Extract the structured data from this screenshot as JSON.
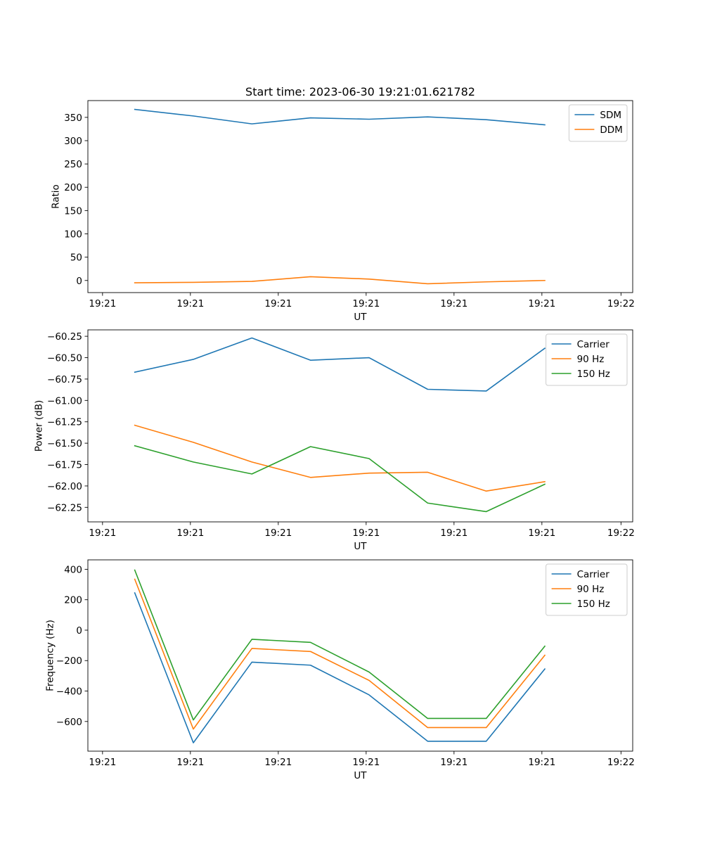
{
  "figure": {
    "title": "Start time: 2023-06-30 19:21:01.621782"
  },
  "colors": {
    "blue": "#1f77b4",
    "orange": "#ff7f0e",
    "green": "#2ca02c"
  },
  "chart_data": [
    {
      "type": "line",
      "title": "Start time: 2023-06-30 19:21:01.621782",
      "xlabel": "UT",
      "ylabel": "Ratio",
      "x": [
        1,
        2,
        3,
        4,
        5,
        6,
        7,
        8
      ],
      "xlim": [
        0.2,
        9.5
      ],
      "xticks": [
        0.45,
        1.95,
        3.45,
        4.95,
        6.45,
        7.95,
        9.3
      ],
      "xticklabels": [
        "19:21",
        "19:21",
        "19:21",
        "19:21",
        "19:21",
        "19:21",
        "19:22"
      ],
      "ylim": [
        -26,
        386
      ],
      "yticks": [
        0,
        50,
        100,
        150,
        200,
        250,
        300,
        350
      ],
      "yticklabels": [
        "0",
        "50",
        "100",
        "150",
        "200",
        "250",
        "300",
        "350"
      ],
      "legend_position": "top-right",
      "series": [
        {
          "name": "SDM",
          "color": "#1f77b4",
          "values": [
            367,
            353,
            336,
            349,
            346,
            351,
            345,
            334
          ]
        },
        {
          "name": "DDM",
          "color": "#ff7f0e",
          "values": [
            -5,
            -4,
            -2,
            8,
            3,
            -7,
            -3,
            0
          ]
        }
      ]
    },
    {
      "type": "line",
      "title": "",
      "xlabel": "UT",
      "ylabel": "Power (dB)",
      "x": [
        1,
        2,
        3,
        4,
        5,
        6,
        7,
        8
      ],
      "xlim": [
        0.2,
        9.5
      ],
      "xticks": [
        0.45,
        1.95,
        3.45,
        4.95,
        6.45,
        7.95,
        9.3
      ],
      "xticklabels": [
        "19:21",
        "19:21",
        "19:21",
        "19:21",
        "19:21",
        "19:21",
        "19:22"
      ],
      "ylim": [
        -62.42,
        -60.175
      ],
      "yticks": [
        -62.25,
        -62.0,
        -61.75,
        -61.5,
        -61.25,
        -61.0,
        -60.75,
        -60.5,
        -60.25
      ],
      "yticklabels": [
        "−62.25",
        "−62.00",
        "−61.75",
        "−61.50",
        "−61.25",
        "−61.00",
        "−60.75",
        "−60.50",
        "−60.25"
      ],
      "legend_position": "top-right",
      "series": [
        {
          "name": "Carrier",
          "color": "#1f77b4",
          "values": [
            -60.67,
            -60.52,
            -60.27,
            -60.53,
            -60.5,
            -60.87,
            -60.89,
            -60.39
          ]
        },
        {
          "name": "90 Hz",
          "color": "#ff7f0e",
          "values": [
            -61.29,
            -61.49,
            -61.72,
            -61.9,
            -61.85,
            -61.84,
            -62.06,
            -61.95
          ]
        },
        {
          "name": "150 Hz",
          "color": "#2ca02c",
          "values": [
            -61.53,
            -61.72,
            -61.86,
            -61.54,
            -61.68,
            -62.2,
            -62.3,
            -61.98
          ]
        }
      ]
    },
    {
      "type": "line",
      "title": "",
      "xlabel": "UT",
      "ylabel": "Frequency (Hz)",
      "x": [
        1,
        2,
        3,
        4,
        5,
        6,
        7,
        8
      ],
      "xlim": [
        0.2,
        9.5
      ],
      "xticks": [
        0.45,
        1.95,
        3.45,
        4.95,
        6.45,
        7.95,
        9.3
      ],
      "xticklabels": [
        "19:21",
        "19:21",
        "19:21",
        "19:21",
        "19:21",
        "19:21",
        "19:22"
      ],
      "ylim": [
        -795,
        462
      ],
      "yticks": [
        -600,
        -400,
        -200,
        0,
        200,
        400
      ],
      "yticklabels": [
        "−600",
        "−400",
        "−200",
        "0",
        "200",
        "400"
      ],
      "legend_position": "top-right",
      "series": [
        {
          "name": "Carrier",
          "color": "#1f77b4",
          "values": [
            245,
            -740,
            -210,
            -230,
            -425,
            -730,
            -730,
            -255
          ]
        },
        {
          "name": "90 Hz",
          "color": "#ff7f0e",
          "values": [
            335,
            -650,
            -120,
            -140,
            -330,
            -640,
            -640,
            -165
          ]
        },
        {
          "name": "150 Hz",
          "color": "#2ca02c",
          "values": [
            395,
            -590,
            -60,
            -80,
            -275,
            -580,
            -580,
            -105
          ]
        }
      ]
    }
  ]
}
